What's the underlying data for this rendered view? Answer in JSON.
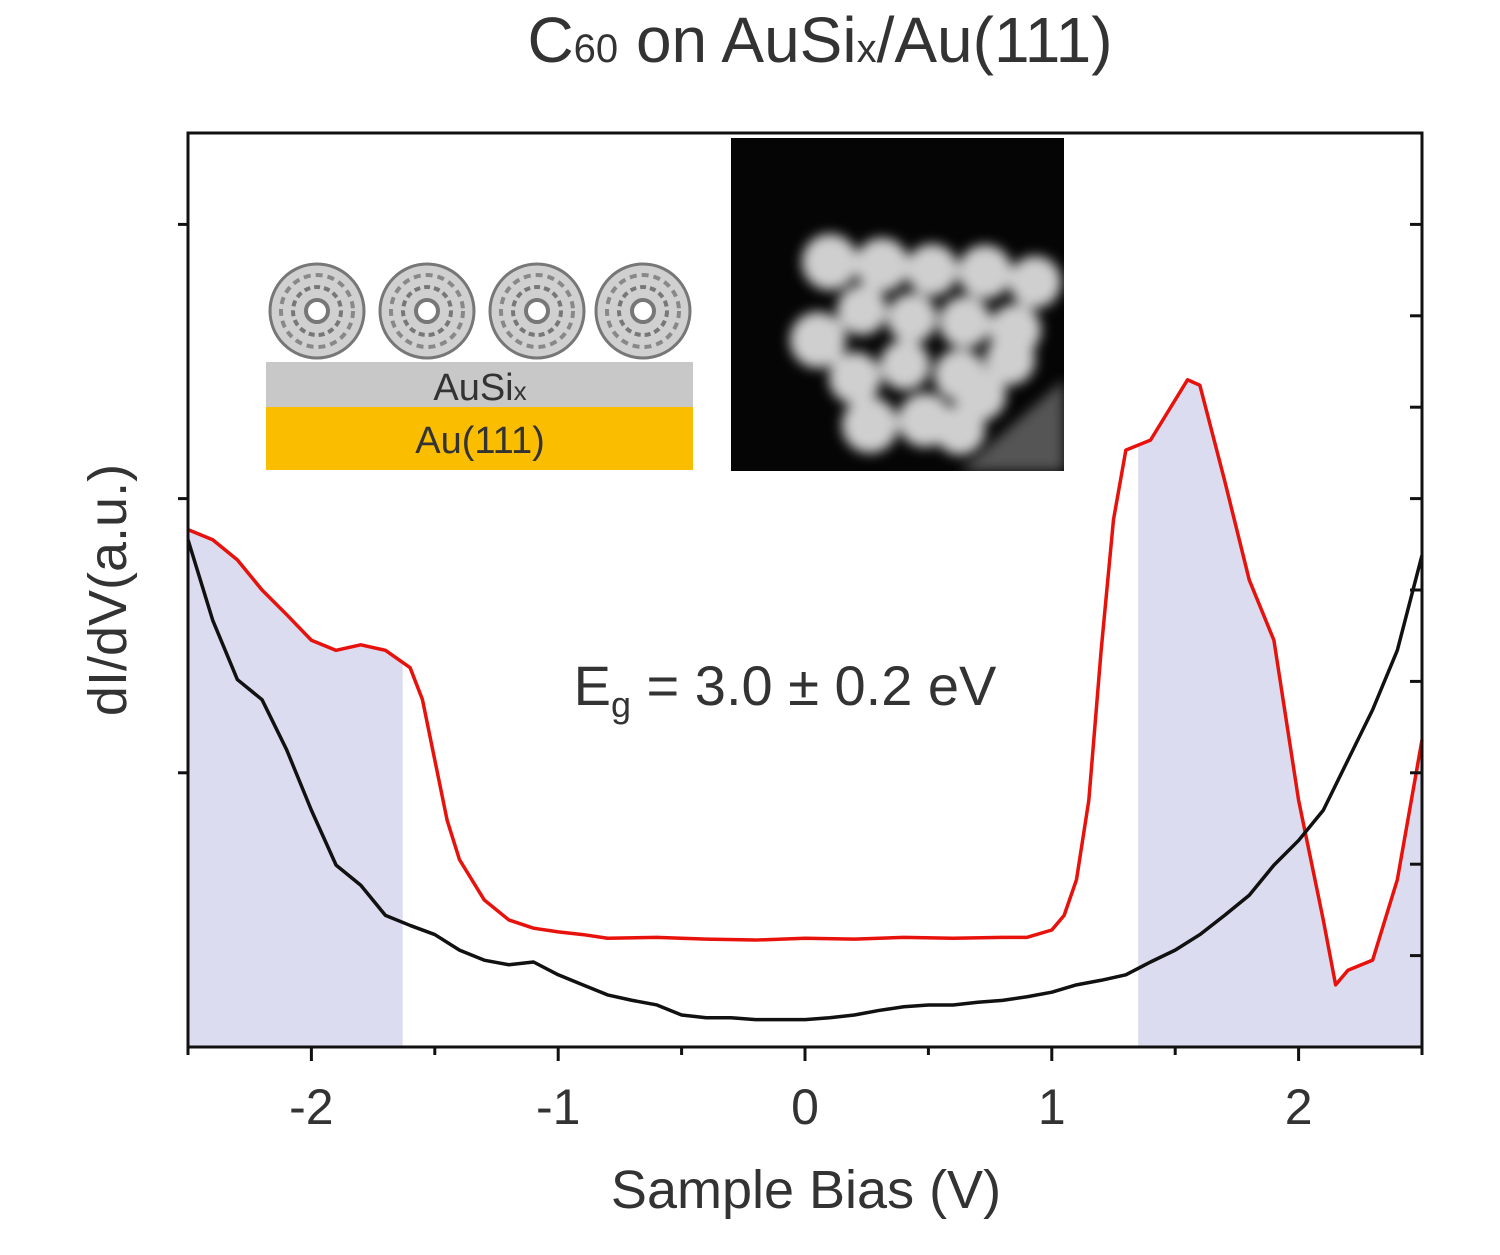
{
  "chart_data": {
    "type": "line",
    "title_parts": [
      "C",
      "60",
      " on AuSi",
      "x",
      "/Au(111)"
    ],
    "x_label": "Sample Bias (V)",
    "y_label": "dI/dV(a.u.)",
    "annotation_parts": [
      "E",
      "g",
      " = 3.0 ± 0.2 eV"
    ],
    "inset_labels": {
      "layer_top": [
        "AuSi",
        "x"
      ],
      "layer_bottom": "Au(111)"
    },
    "xlim": [
      -2.5,
      2.5
    ],
    "xticks": [
      -2,
      -1,
      0,
      1,
      2
    ],
    "xminor": [
      -2.5,
      -1.5,
      -0.5,
      0.5,
      1.5,
      2.5
    ],
    "ylim": [
      0,
      10
    ],
    "yticks": [
      1,
      2,
      3,
      4,
      5,
      6,
      7,
      8,
      9
    ],
    "ytick_labels": false,
    "shade_color": "#dcdcf0",
    "shaded_ranges": [
      [
        -2.5,
        -1.63
      ],
      [
        1.35,
        2.5
      ]
    ],
    "series": [
      {
        "color": "#e8120c",
        "x": [
          -2.5,
          -2.4,
          -2.3,
          -2.2,
          -2.1,
          -2.0,
          -1.9,
          -1.8,
          -1.7,
          -1.6,
          -1.55,
          -1.5,
          -1.45,
          -1.4,
          -1.3,
          -1.2,
          -1.1,
          -1.0,
          -0.9,
          -0.8,
          -0.6,
          -0.4,
          -0.2,
          0,
          0.2,
          0.4,
          0.6,
          0.8,
          0.9,
          1.0,
          1.05,
          1.1,
          1.15,
          1.2,
          1.25,
          1.3,
          1.4,
          1.5,
          1.55,
          1.6,
          1.7,
          1.8,
          1.9,
          2.0,
          2.1,
          2.15,
          2.2,
          2.3,
          2.4,
          2.5
        ],
        "values": [
          5.66,
          5.55,
          5.33,
          5.0,
          4.73,
          4.45,
          4.34,
          4.4,
          4.34,
          4.15,
          3.8,
          3.14,
          2.48,
          2.05,
          1.61,
          1.39,
          1.3,
          1.26,
          1.23,
          1.19,
          1.2,
          1.18,
          1.17,
          1.19,
          1.18,
          1.2,
          1.19,
          1.2,
          1.2,
          1.28,
          1.44,
          1.83,
          2.7,
          4.34,
          5.77,
          6.53,
          6.64,
          7.08,
          7.3,
          7.24,
          6.2,
          5.11,
          4.45,
          2.7,
          1.39,
          0.68,
          0.84,
          0.95,
          1.83,
          3.36
        ]
      },
      {
        "color": "#111111",
        "x": [
          -2.5,
          -2.4,
          -2.3,
          -2.2,
          -2.1,
          -2.0,
          -1.9,
          -1.8,
          -1.7,
          -1.6,
          -1.5,
          -1.4,
          -1.3,
          -1.2,
          -1.1,
          -1.0,
          -0.9,
          -0.8,
          -0.7,
          -0.6,
          -0.5,
          -0.4,
          -0.3,
          -0.2,
          -0.1,
          0,
          0.1,
          0.2,
          0.3,
          0.4,
          0.5,
          0.6,
          0.7,
          0.8,
          0.9,
          1.0,
          1.1,
          1.2,
          1.3,
          1.4,
          1.5,
          1.6,
          1.7,
          1.8,
          1.9,
          2.0,
          2.1,
          2.2,
          2.3,
          2.4,
          2.5
        ],
        "values": [
          5.55,
          4.67,
          4.02,
          3.8,
          3.25,
          2.59,
          1.99,
          1.77,
          1.44,
          1.33,
          1.23,
          1.06,
          0.95,
          0.9,
          0.93,
          0.79,
          0.68,
          0.57,
          0.51,
          0.46,
          0.35,
          0.32,
          0.32,
          0.3,
          0.3,
          0.3,
          0.32,
          0.35,
          0.4,
          0.44,
          0.46,
          0.46,
          0.49,
          0.51,
          0.55,
          0.6,
          0.68,
          0.73,
          0.79,
          0.93,
          1.06,
          1.23,
          1.44,
          1.66,
          1.99,
          2.26,
          2.59,
          3.14,
          3.69,
          4.34,
          5.38
        ]
      }
    ]
  }
}
